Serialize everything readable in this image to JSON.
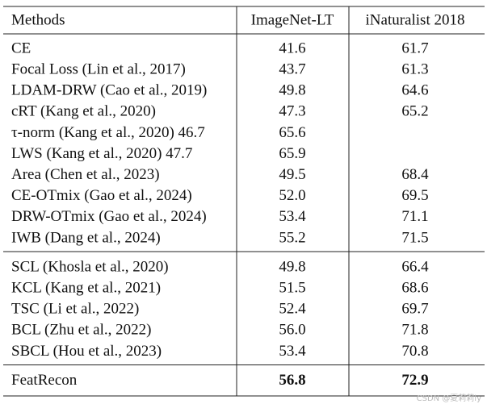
{
  "table": {
    "header": [
      "Methods",
      "ImageNet-LT",
      "iNaturalist 2018"
    ],
    "groups": [
      [
        [
          "CE",
          "41.6",
          "61.7"
        ],
        [
          "Focal Loss (Lin et al., 2017)",
          "43.7",
          "61.3"
        ],
        [
          "LDAM-DRW (Cao et al., 2019)",
          "49.8",
          "64.6"
        ],
        [
          "cRT (Kang et al., 2020)",
          "47.3",
          "65.2"
        ],
        [
          "τ-norm (Kang et al., 2020) 46.7",
          "65.6",
          null
        ],
        [
          "LWS (Kang et al., 2020) 47.7",
          "65.9",
          null
        ],
        [
          "Area (Chen et al., 2023)",
          "49.5",
          "68.4"
        ],
        [
          "CE-OTmix (Gao et al., 2024)",
          "52.0",
          "69.5"
        ],
        [
          "DRW-OTmix (Gao et al., 2024)",
          "53.4",
          "71.1"
        ],
        [
          "IWB (Dang et al., 2024)",
          "55.2",
          "71.5"
        ]
      ],
      [
        [
          "SCL (Khosla et al., 2020)",
          "49.8",
          "66.4"
        ],
        [
          "KCL (Kang et al., 2021)",
          "51.5",
          "68.6"
        ],
        [
          "TSC (Li et al., 2022)",
          "52.4",
          "69.7"
        ],
        [
          "BCL (Zhu et al., 2022)",
          "56.0",
          "71.8"
        ],
        [
          "SBCL (Hou et al., 2023)",
          "53.4",
          "70.8"
        ]
      ],
      [
        [
          "FeatRecon",
          "56.8",
          "72.9"
        ]
      ]
    ]
  },
  "watermark": "CSDN @夏莉莉ly"
}
